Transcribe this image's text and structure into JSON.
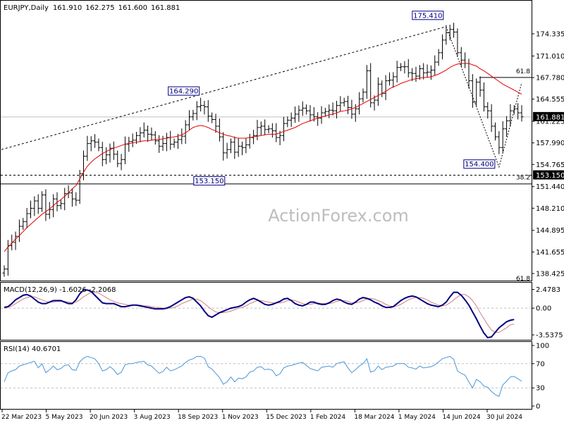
{
  "chart_data": [
    {
      "type": "candlestick",
      "title": "EURJPY,Daily",
      "ohlc_header": {
        "open": "161.910",
        "high": "162.275",
        "low": "161.600",
        "close": "161.881"
      },
      "price_label": "161.881",
      "y_ticks": [
        "174.335",
        "171.010",
        "167.780",
        "164.555",
        "161.225",
        "157.990",
        "154.765",
        "153.150",
        "151.440",
        "148.210",
        "144.895",
        "141.655",
        "138.425"
      ],
      "ylim": [
        138.0,
        177.5
      ],
      "x_tick_labels": [
        "22 Mar 2023",
        "5 May 2023",
        "20 Jun 2023",
        "3 Aug 2023",
        "18 Sep 2023",
        "1 Nov 2023",
        "15 Dec 2023",
        "1 Feb 2024",
        "18 Mar 2024",
        "1 May 2024",
        "14 Jun 2024",
        "30 Jul 2024"
      ],
      "annotations": [
        {
          "text": "175.410",
          "value": 175.41
        },
        {
          "text": "164.290",
          "value": 164.29
        },
        {
          "text": "153.150",
          "value": 153.15
        },
        {
          "text": "154.400",
          "value": 154.4
        }
      ],
      "fib_labels": [
        "61.8",
        "38.2",
        "61.8"
      ],
      "fib_61_8_level": 167.8,
      "horizontal_level": 153.15,
      "series": [
        {
          "kind": "close",
          "values": [
            139.1,
            142.6,
            143.1,
            144.0,
            145.5,
            146.2,
            147.4,
            148.2,
            149.3,
            148.2,
            150.2,
            147.3,
            148.0,
            149.6,
            148.6,
            148.9,
            150.4,
            150.5,
            149.6,
            149.4,
            153.4,
            156.0,
            157.9,
            158.3,
            158.1,
            157.3,
            155.5,
            156.2,
            157.2,
            156.3,
            154.9,
            155.5,
            157.8,
            158.2,
            158.4,
            159.1,
            159.5,
            159.9,
            159.3,
            159.2,
            158.3,
            157.5,
            157.9,
            158.8,
            157.8,
            158.1,
            158.5,
            159.0,
            160.7,
            161.9,
            162.4,
            163.4,
            163.6,
            163.4,
            162.0,
            161.5,
            160.5,
            158.9,
            156.5,
            157.0,
            158.1,
            156.6,
            157.5,
            157.3,
            157.7,
            158.8,
            159.1,
            160.3,
            160.5,
            160.0,
            160.1,
            159.8,
            158.8,
            159.1,
            160.9,
            161.4,
            161.7,
            162.3,
            162.9,
            163.2,
            162.8,
            162.2,
            161.9,
            161.7,
            162.5,
            162.7,
            162.9,
            162.8,
            163.6,
            164.0,
            164.2,
            163.3,
            162.3,
            163.1,
            164.6,
            165.6,
            168.8,
            164.0,
            164.4,
            166.8,
            165.4,
            167.3,
            167.4,
            167.9,
            169.3,
            169.4,
            169.4,
            168.5,
            168.4,
            168.0,
            169.1,
            168.5,
            168.6,
            168.9,
            170.1,
            171.5,
            173.4,
            174.5,
            175.0,
            174.6,
            171.5,
            170.4,
            169.9,
            167.3,
            164.1,
            167.1,
            165.9,
            163.4,
            162.8,
            160.5,
            158.9,
            157.3,
            160.1,
            161.3,
            162.8,
            163.1,
            162.5,
            161.9
          ],
          "ma_values": [
            141.7,
            142.4,
            143.0,
            143.6,
            144.1,
            144.7,
            145.3,
            145.8,
            146.3,
            146.8,
            147.3,
            147.7,
            148.1,
            148.6,
            149.1,
            149.5,
            150.0,
            150.5,
            151.1,
            151.6,
            152.6,
            153.6,
            154.5,
            155.1,
            155.6,
            156.0,
            156.4,
            156.7,
            157.0,
            157.2,
            157.4,
            157.6,
            157.8,
            157.9,
            158.0,
            158.1,
            158.2,
            158.3,
            158.3,
            158.4,
            158.5,
            158.5,
            158.6,
            158.7,
            158.8,
            158.9,
            159.0,
            159.2,
            159.5,
            159.9,
            160.3,
            160.5,
            160.6,
            160.5,
            160.3,
            160.0,
            159.8,
            159.5,
            159.3,
            159.1,
            159.0,
            158.8,
            158.7,
            158.7,
            158.7,
            158.8,
            158.9,
            159.0,
            159.1,
            159.2,
            159.3,
            159.3,
            159.3,
            159.5,
            159.7,
            159.9,
            160.1,
            160.3,
            160.6,
            160.9,
            161.1,
            161.3,
            161.5,
            161.7,
            161.9,
            162.0,
            162.2,
            162.3,
            162.5,
            162.7,
            162.8,
            162.9,
            163.1,
            163.3,
            163.6,
            163.9,
            164.2,
            164.5,
            164.8,
            165.1,
            165.4,
            165.7,
            166.1,
            166.4,
            166.6,
            166.9,
            167.1,
            167.3,
            167.5,
            167.6,
            167.7,
            167.8,
            167.8,
            167.9,
            168.1,
            168.3,
            168.6,
            168.9,
            169.3,
            169.6,
            169.8,
            169.9,
            169.9,
            169.9,
            169.7,
            169.5,
            169.1,
            168.8,
            168.4,
            168.0,
            167.6,
            167.2,
            166.8,
            166.5,
            166.2,
            165.9,
            165.6,
            165.3
          ]
        }
      ]
    },
    {
      "type": "line",
      "title": "MACD(12,26,9) -1.6026 -2.2068",
      "y_ticks": [
        "2.4783",
        "0.00",
        "-3.5375"
      ],
      "ylim": [
        -4.0,
        2.9
      ],
      "series": [
        {
          "name": "macd",
          "values": [
            0.1,
            0.2,
            0.6,
            1.1,
            1.4,
            1.7,
            1.8,
            1.6,
            1.2,
            0.8,
            0.6,
            0.6,
            0.8,
            1.0,
            1.0,
            1.0,
            0.8,
            0.6,
            0.6,
            1.1,
            1.9,
            2.4,
            2.4,
            2.2,
            1.7,
            1.2,
            0.7,
            0.6,
            0.6,
            0.6,
            0.4,
            0.2,
            0.2,
            0.3,
            0.4,
            0.4,
            0.3,
            0.2,
            0.1,
            0.0,
            -0.1,
            -0.1,
            -0.1,
            0.0,
            0.2,
            0.5,
            0.8,
            1.1,
            1.4,
            1.5,
            1.3,
            0.8,
            0.3,
            -0.4,
            -1.0,
            -1.2,
            -0.9,
            -0.6,
            -0.4,
            -0.2,
            0.0,
            0.1,
            0.2,
            0.4,
            0.8,
            1.1,
            1.3,
            1.1,
            0.8,
            0.5,
            0.4,
            0.5,
            0.7,
            0.9,
            1.2,
            1.3,
            1.0,
            0.6,
            0.4,
            0.3,
            0.5,
            0.8,
            0.8,
            0.6,
            0.5,
            0.5,
            0.7,
            1.0,
            1.2,
            1.1,
            0.8,
            0.6,
            0.5,
            0.8,
            1.2,
            1.4,
            1.3,
            1.1,
            0.8,
            0.6,
            0.3,
            0.1,
            0.1,
            0.2,
            0.6,
            1.0,
            1.3,
            1.5,
            1.6,
            1.5,
            1.2,
            0.9,
            0.6,
            0.4,
            0.3,
            0.2,
            0.4,
            0.8,
            1.5,
            2.1,
            2.1,
            1.7,
            1.1,
            0.4,
            -0.5,
            -1.4,
            -2.4,
            -3.3,
            -3.9,
            -3.8,
            -3.2,
            -2.6,
            -2.2,
            -1.8,
            -1.6,
            -1.5
          ]
        },
        {
          "name": "signal",
          "values": [
            0.0,
            0.1,
            0.3,
            0.6,
            0.9,
            1.2,
            1.4,
            1.5,
            1.5,
            1.3,
            1.1,
            0.9,
            0.8,
            0.8,
            0.9,
            0.9,
            0.9,
            0.8,
            0.7,
            0.8,
            1.1,
            1.5,
            1.8,
            2.1,
            2.1,
            2.0,
            1.7,
            1.4,
            1.1,
            0.9,
            0.7,
            0.6,
            0.5,
            0.4,
            0.4,
            0.4,
            0.4,
            0.3,
            0.3,
            0.2,
            0.1,
            0.1,
            0.0,
            0.0,
            0.0,
            0.1,
            0.3,
            0.6,
            0.8,
            1.0,
            1.2,
            1.2,
            1.0,
            0.6,
            0.2,
            -0.2,
            -0.5,
            -0.6,
            -0.6,
            -0.5,
            -0.4,
            -0.2,
            0.0,
            0.1,
            0.3,
            0.6,
            0.8,
            1.0,
            1.0,
            0.9,
            0.8,
            0.7,
            0.7,
            0.7,
            0.8,
            1.0,
            1.1,
            1.0,
            0.8,
            0.6,
            0.5,
            0.5,
            0.6,
            0.7,
            0.6,
            0.6,
            0.6,
            0.7,
            0.9,
            1.0,
            1.0,
            0.9,
            0.7,
            0.7,
            0.8,
            1.0,
            1.2,
            1.3,
            1.2,
            1.0,
            0.8,
            0.5,
            0.3,
            0.2,
            0.3,
            0.5,
            0.8,
            1.1,
            1.3,
            1.4,
            1.4,
            1.3,
            1.1,
            0.8,
            0.6,
            0.4,
            0.3,
            0.4,
            0.7,
            1.1,
            1.5,
            1.8,
            1.8,
            1.5,
            1.0,
            0.3,
            -0.6,
            -1.4,
            -2.2,
            -2.9,
            -3.2,
            -3.2,
            -2.9,
            -2.6,
            -2.2,
            -2.1
          ]
        }
      ]
    },
    {
      "type": "line",
      "title": "RSI(14) 40.6701",
      "y_ticks": [
        "100",
        "70",
        "30",
        "0"
      ],
      "ylim": [
        0,
        100
      ],
      "levels": [
        70,
        30
      ],
      "series": [
        {
          "name": "rsi",
          "values": [
            40,
            55,
            58,
            60,
            66,
            68,
            70,
            72,
            74,
            63,
            70,
            55,
            60,
            66,
            60,
            62,
            67,
            68,
            60,
            59,
            73,
            79,
            82,
            80,
            78,
            70,
            58,
            60,
            65,
            60,
            52,
            56,
            68,
            70,
            70,
            72,
            73,
            74,
            68,
            66,
            60,
            54,
            57,
            64,
            58,
            60,
            63,
            66,
            72,
            76,
            78,
            82,
            82,
            79,
            65,
            61,
            54,
            47,
            36,
            40,
            48,
            40,
            46,
            45,
            48,
            56,
            58,
            64,
            65,
            60,
            61,
            59,
            50,
            53,
            63,
            66,
            67,
            69,
            71,
            72,
            67,
            62,
            60,
            58,
            64,
            65,
            66,
            64,
            70,
            72,
            73,
            63,
            55,
            60,
            66,
            70,
            78,
            56,
            58,
            66,
            60,
            64,
            65,
            66,
            70,
            70,
            70,
            64,
            63,
            61,
            66,
            63,
            64,
            65,
            68,
            73,
            78,
            80,
            82,
            77,
            58,
            54,
            51,
            40,
            30,
            44,
            40,
            33,
            31,
            24,
            19,
            16,
            35,
            41,
            48,
            49,
            45,
            41
          ]
        }
      ]
    }
  ],
  "x_axis": {
    "labels": [
      "22 Mar 2023",
      "5 May 2023",
      "20 Jun 2023",
      "3 Aug 2023",
      "18 Sep 2023",
      "1 Nov 2023",
      "15 Dec 2023",
      "1 Feb 2024",
      "18 Mar 2024",
      "1 May 2024",
      "14 Jun 2024",
      "30 Jul 2024"
    ]
  },
  "watermark": "ActionForex.com",
  "colors": {
    "candle": "#000000",
    "ma": "#e30000",
    "macd": "#000080",
    "signal": "#d08080",
    "rsi": "#4a96d8",
    "trendline": "#000000",
    "grid": "#c0c0c0",
    "watermark": "#bdbdbd"
  }
}
